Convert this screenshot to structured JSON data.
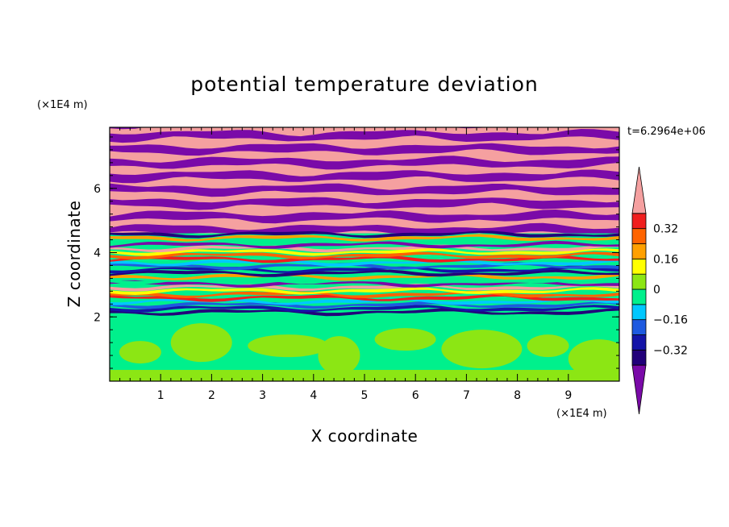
{
  "chart_data": {
    "type": "heatmap",
    "title": "potential temperature deviation",
    "xlabel": "X coordinate",
    "ylabel": "Z coordinate",
    "x_unit": "(×1E4 m)",
    "y_unit": "(×1E4 m)",
    "time_label": "t=6.2964e+06",
    "xlim": [
      0,
      10
    ],
    "ylim": [
      0,
      7.9
    ],
    "xticks": [
      "1",
      "2",
      "3",
      "4",
      "5",
      "6",
      "7",
      "8",
      "9"
    ],
    "yticks": [
      "2",
      "4",
      "6"
    ],
    "colorbar": {
      "levels": [
        -0.48,
        -0.4,
        -0.32,
        -0.24,
        -0.16,
        -0.08,
        0,
        0.08,
        0.16,
        0.24,
        0.32,
        0.4,
        0.48
      ],
      "tick_labels": [
        "0.32",
        "0.16",
        "0",
        "−0.16",
        "−0.32"
      ],
      "tick_values": [
        0.32,
        0.16,
        0,
        -0.16,
        -0.32
      ],
      "colors": [
        "#7a0aa8",
        "#22007a",
        "#1414a8",
        "#1e5ae0",
        "#00c8ff",
        "#00f08c",
        "#8ce614",
        "#ffff00",
        "#ffa000",
        "#ff6400",
        "#f01e1e",
        "#f5a0a0"
      ]
    },
    "regions": [
      {
        "z_range": [
          0,
          2.1
        ],
        "description_values": [
          0,
          0.08
        ]
      },
      {
        "z_range": [
          2.1,
          4.6
        ],
        "description_values": [
          -0.48,
          0.48
        ]
      },
      {
        "z_range": [
          4.6,
          7.9
        ],
        "description_values": [
          -0.48,
          0.48
        ]
      }
    ]
  }
}
